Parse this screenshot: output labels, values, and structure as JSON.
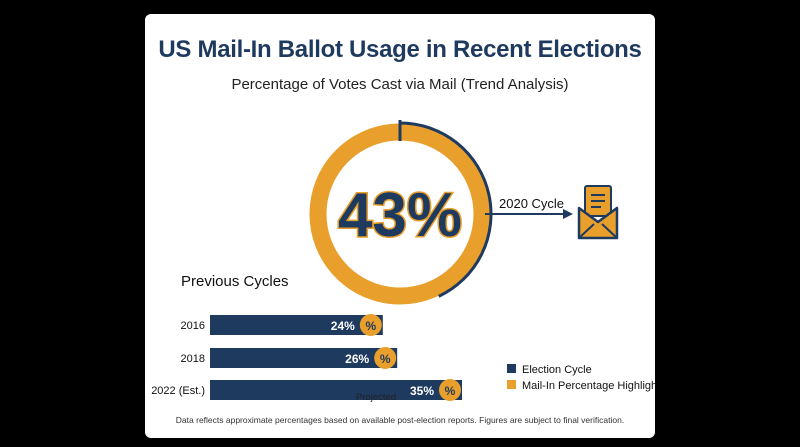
{
  "colors": {
    "navy": "#1f3a5f",
    "orange": "#e89f2c",
    "background": "#000000",
    "card": "#ffffff"
  },
  "header": {
    "title": "US Mail-In Ballot Usage in Recent Elections",
    "subtitle": "Percentage of Votes Cast via Mail (Trend Analysis)"
  },
  "highlight": {
    "value_label": "43%",
    "cycle_label": "2020 Cycle",
    "icon": "envelope-document-icon"
  },
  "previous": {
    "title": "Previous Cycles",
    "projected_label": "Projected"
  },
  "legend": [
    {
      "label": "Election Cycle",
      "color": "#1f3a5f"
    },
    {
      "label": "Mail-In Percentage Highlight",
      "color": "#e89f2c"
    }
  ],
  "footnote": "Data reflects approximate percentages based on available post-election reports. Figures are subject to final verification.",
  "chart_data": [
    {
      "type": "pie",
      "title": "2020 Cycle",
      "values": [
        43
      ],
      "value_label": "43%",
      "max": 100
    },
    {
      "type": "bar",
      "title": "Previous Cycles",
      "categories": [
        "2016",
        "2018",
        "2022 (Est.)"
      ],
      "values": [
        24,
        26,
        35
      ],
      "value_labels": [
        "24%",
        "26%",
        "35%"
      ],
      "badge_symbol": "%",
      "annotations": [
        {
          "category": "2022 (Est.)",
          "text": "Projected"
        }
      ]
    }
  ]
}
